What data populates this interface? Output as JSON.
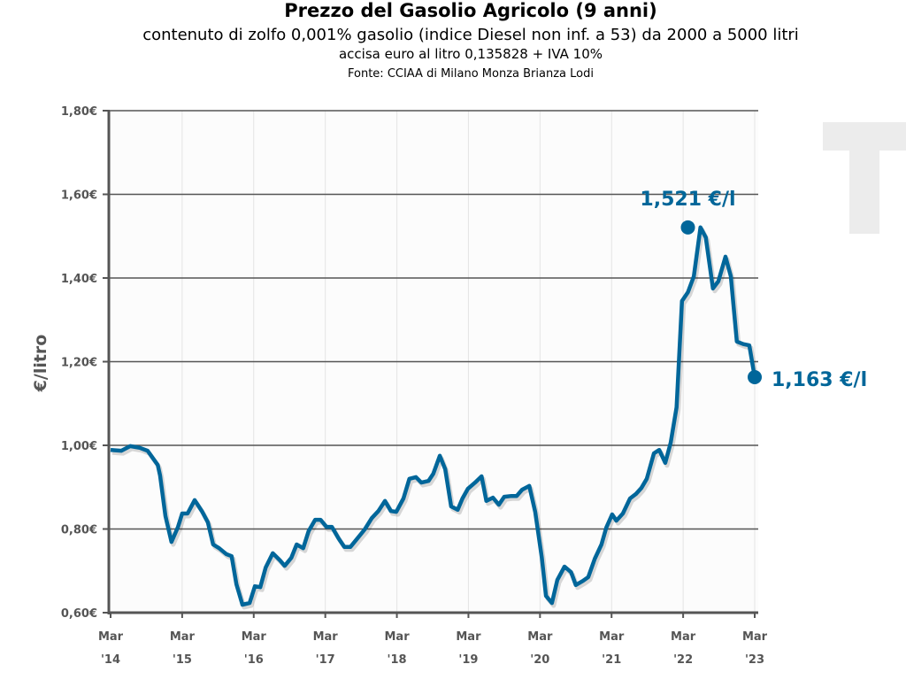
{
  "chart_data": {
    "type": "line",
    "title": "Prezzo del Gasolio Agricolo (9 anni)",
    "subtitle": "contenuto di zolfo 0,001% gasolio (indice Diesel non inf. a 53) da 2000 a 5000 litri",
    "subtitle2": "accisa euro al litro 0,135828 + IVA 10%",
    "source": "Fonte: CCIAA di Milano Monza Brianza Lodi",
    "ylabel": "€/litro",
    "xlabel": "",
    "ylim": [
      0.6,
      1.8
    ],
    "yticks": [
      0.6,
      0.8,
      1.0,
      1.2,
      1.4,
      1.6,
      1.8
    ],
    "ytick_labels": [
      "0,60€",
      "0,80€",
      "1,00€",
      "1,20€",
      "1,40€",
      "1,60€",
      "1,80€"
    ],
    "xtick_labels": [
      [
        "Mar",
        "'14"
      ],
      [
        "Mar",
        "'15"
      ],
      [
        "Mar",
        "'16"
      ],
      [
        "Mar",
        "'17"
      ],
      [
        "Mar",
        "'18"
      ],
      [
        "Mar",
        "'19"
      ],
      [
        "Mar",
        "'20"
      ],
      [
        "Mar",
        "'21"
      ],
      [
        "Mar",
        "'22"
      ],
      [
        "Mar",
        "'23"
      ]
    ],
    "x_unit": "months since Mar 2014",
    "xlim": [
      0,
      108
    ],
    "grid": true,
    "line_color": "#00669a",
    "series": [
      {
        "name": "Prezzo gasolio agricolo",
        "x": [
          0,
          1.8,
          3.3,
          4.9,
          6.2,
          7.9,
          8.3,
          9.2,
          10.2,
          11.3,
          12.0,
          12.9,
          14.1,
          15.3,
          16.3,
          17.2,
          18.2,
          19.4,
          20.3,
          21.1,
          22.1,
          23.3,
          24.2,
          25.1,
          26.0,
          27.2,
          28.4,
          29.2,
          30.3,
          31.2,
          32.3,
          33.2,
          34.3,
          35.2,
          36.2,
          37.1,
          38.2,
          39.2,
          40.2,
          41.4,
          42.6,
          43.8,
          44.9,
          46.0,
          47.0,
          47.9,
          49.1,
          50.1,
          51.2,
          52.1,
          53.3,
          54.1,
          55.2,
          56.1,
          57.1,
          58.2,
          59.0,
          59.9,
          61.1,
          62.2,
          63.0,
          64.1,
          65.1,
          66.0,
          67.2,
          68.1,
          69.0,
          70.2,
          71.2,
          72.3,
          73.0,
          74.0,
          74.9,
          76.1,
          77.2,
          78.0,
          79.2,
          80.1,
          81.2,
          82.3,
          83.1,
          84.1,
          84.8,
          85.9,
          87.1,
          88.1,
          89.0,
          89.9,
          91.1,
          92.0,
          93.0,
          93.9,
          94.9,
          95.8,
          96.8,
          97.8,
          98.9,
          99.8,
          101.0,
          101.9,
          103.1,
          104.0,
          105.0,
          106.1,
          107.1,
          108.0
        ],
        "values": [
          0.989,
          0.987,
          0.998,
          0.994,
          0.987,
          0.953,
          0.928,
          0.831,
          0.769,
          0.805,
          0.837,
          0.837,
          0.869,
          0.843,
          0.816,
          0.763,
          0.754,
          0.74,
          0.735,
          0.668,
          0.619,
          0.623,
          0.663,
          0.661,
          0.708,
          0.742,
          0.725,
          0.712,
          0.731,
          0.763,
          0.754,
          0.795,
          0.822,
          0.822,
          0.805,
          0.805,
          0.778,
          0.757,
          0.757,
          0.778,
          0.799,
          0.826,
          0.843,
          0.867,
          0.843,
          0.841,
          0.873,
          0.92,
          0.924,
          0.911,
          0.915,
          0.932,
          0.975,
          0.943,
          0.854,
          0.846,
          0.873,
          0.896,
          0.911,
          0.926,
          0.867,
          0.875,
          0.858,
          0.877,
          0.879,
          0.879,
          0.894,
          0.903,
          0.841,
          0.731,
          0.64,
          0.623,
          0.678,
          0.71,
          0.697,
          0.666,
          0.676,
          0.685,
          0.729,
          0.763,
          0.803,
          0.835,
          0.82,
          0.837,
          0.873,
          0.884,
          0.898,
          0.92,
          0.981,
          0.989,
          0.958,
          1.006,
          1.091,
          1.345,
          1.366,
          1.404,
          1.521,
          1.497,
          1.375,
          1.392,
          1.451,
          1.404,
          1.248,
          1.242,
          1.239,
          1.163
        ]
      }
    ],
    "annotations": [
      {
        "label": "1,521 €/l",
        "x": 96.8,
        "value": 1.521
      },
      {
        "label": "1,163 €/l",
        "x": 108.0,
        "value": 1.163
      }
    ]
  }
}
